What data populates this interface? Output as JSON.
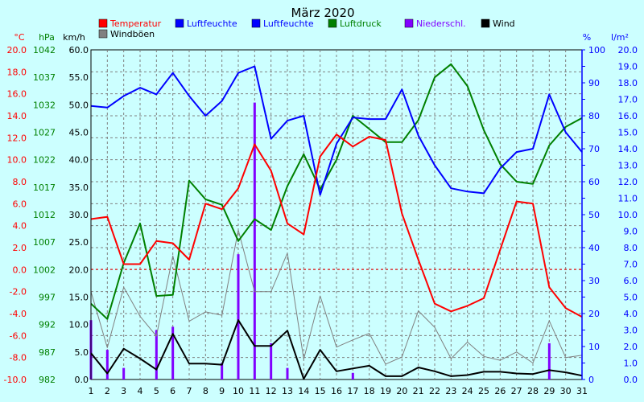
{
  "chart_data": {
    "type": "line",
    "title": "März 2020",
    "x": [
      1,
      2,
      3,
      4,
      5,
      6,
      7,
      8,
      9,
      10,
      11,
      12,
      13,
      14,
      15,
      16,
      17,
      18,
      19,
      20,
      21,
      22,
      23,
      24,
      25,
      26,
      27,
      28,
      29,
      30,
      31
    ],
    "axes": {
      "temp": {
        "label": "°C",
        "ticks": [
          "20.0",
          "18.0",
          "16.0",
          "14.0",
          "12.0",
          "10.0",
          "8.0",
          "6.0",
          "4.0",
          "2.0",
          "0.0",
          "-2.0",
          "-4.0",
          "-6.0",
          "-8.0",
          "-10.0"
        ],
        "ylim": [
          -10,
          20
        ],
        "color": "#FF0000"
      },
      "press": {
        "label": "hPa",
        "ticks": [
          "1042",
          "1037",
          "1032",
          "1027",
          "1022",
          "1017",
          "1012",
          "1007",
          "1002",
          "997",
          "992",
          "987",
          "982"
        ],
        "ylim": [
          982,
          1042
        ],
        "color": "#008000"
      },
      "wind": {
        "label": "km/h",
        "ticks": [
          "60.0",
          "55.0",
          "50.0",
          "45.0",
          "40.0",
          "35.0",
          "30.0",
          "25.0",
          "20.0",
          "15.0",
          "10.0",
          "5.0",
          "0.0"
        ],
        "ylim": [
          0,
          60
        ],
        "color": "#000000"
      },
      "humid": {
        "label": "%",
        "ticks": [
          "100",
          "90",
          "80",
          "70",
          "60",
          "50",
          "40",
          "30",
          "20",
          "10",
          "0"
        ],
        "ylim": [
          0,
          100
        ],
        "color": "#0000FF"
      },
      "precip": {
        "label": "l/m²",
        "ticks": [
          "20.0",
          "19.0",
          "18.0",
          "17.0",
          "16.0",
          "15.0",
          "14.0",
          "13.0",
          "12.0",
          "11.0",
          "10.0",
          "9.0",
          "8.0",
          "7.0",
          "6.0",
          "5.0",
          "4.0",
          "3.0",
          "2.0",
          "1.0",
          "0.0"
        ],
        "ylim": [
          0,
          20
        ],
        "color": "#0000FF"
      }
    },
    "legend": [
      {
        "name": "Temperatur",
        "color": "#FF0000",
        "text_color": "#FF0000"
      },
      {
        "name": "Luftfeuchte",
        "color": "#0000FF",
        "text_color": "#0000FF"
      },
      {
        "name": "Luftfeuchte",
        "color": "#0000FF",
        "text_color": "#0000FF"
      },
      {
        "name": "Luftdruck",
        "color": "#008000",
        "text_color": "#008000"
      },
      {
        "name": "Niederschl.",
        "color": "#8000FF",
        "text_color": "#8000FF"
      },
      {
        "name": "Wind",
        "color": "#000000",
        "text_color": "#000000"
      },
      {
        "name": "Windböen",
        "color": "#808080",
        "text_color": "#000000"
      }
    ],
    "series": [
      {
        "name": "Temperatur",
        "axis": "temp",
        "color": "#FF0000",
        "width": 2,
        "values": [
          4.6,
          4.8,
          0.5,
          0.5,
          2.6,
          2.4,
          0.9,
          6.0,
          5.5,
          7.4,
          11.4,
          9.0,
          4.2,
          3.2,
          10.3,
          12.3,
          11.2,
          12.1,
          11.8,
          5.1,
          0.9,
          -3.1,
          -3.8,
          -3.3,
          -2.6,
          1.8,
          6.2,
          6.0,
          -1.6,
          -3.5,
          -4.3
        ]
      },
      {
        "name": "Luftfeuchte",
        "axis": "humid",
        "color": "#0000FF",
        "width": 2,
        "values": [
          83,
          82.5,
          86,
          88.5,
          86.5,
          93,
          86,
          80,
          84.5,
          93,
          95,
          73,
          78.5,
          80,
          56,
          71.5,
          79.5,
          79,
          79,
          88,
          74,
          65,
          58,
          57,
          56.5,
          64,
          69,
          70,
          86.5,
          75,
          69
        ]
      },
      {
        "name": "Luftdruck",
        "axis": "press",
        "color": "#008000",
        "width": 2,
        "values": [
          995.8,
          993.0,
          1003.2,
          1010.4,
          997.2,
          997.4,
          1018.2,
          1014.8,
          1013.8,
          1007.2,
          1011.2,
          1009.2,
          1017.2,
          1023.0,
          1016.6,
          1022.0,
          1030.0,
          1027.6,
          1025.2,
          1025.2,
          1029.2,
          1037.0,
          1039.4,
          1035.4,
          1027.4,
          1021.2,
          1018.0,
          1017.6,
          1024.6,
          1028.0,
          1029.6
        ]
      },
      {
        "name": "Wind",
        "axis": "wind",
        "color": "#000000",
        "width": 2,
        "values": [
          4.8,
          1.1,
          5.6,
          3.8,
          1.8,
          8.3,
          2.9,
          2.9,
          2.7,
          10.8,
          6.1,
          6.1,
          8.9,
          0.1,
          5.4,
          1.5,
          2.0,
          2.5,
          0.6,
          0.6,
          2.2,
          1.5,
          0.6,
          0.8,
          1.4,
          1.4,
          1.1,
          1.0,
          1.7,
          1.3,
          0.7
        ]
      },
      {
        "name": "Windböen",
        "axis": "wind",
        "color": "#808080",
        "width": 1,
        "values": [
          16.0,
          5.8,
          16.8,
          11.5,
          7.9,
          22.5,
          10.6,
          12.3,
          11.7,
          27.2,
          16.0,
          16.0,
          23.0,
          3.7,
          15.2,
          5.9,
          7.2,
          8.4,
          2.8,
          4.1,
          12.5,
          9.5,
          3.8,
          6.8,
          4.2,
          3.5,
          5.0,
          3.0,
          10.7,
          4.0,
          4.4
        ]
      },
      {
        "name": "Niederschl.",
        "axis": "precip",
        "type": "bar",
        "color": "#8000FF",
        "values": [
          3.6,
          1.8,
          0.7,
          0,
          3.0,
          3.2,
          0,
          0,
          1.0,
          7.6,
          16.8,
          2.2,
          0.7,
          0,
          0,
          0,
          0.4,
          0,
          0,
          0,
          0,
          0,
          0,
          0,
          0,
          0,
          0,
          0,
          2.2,
          0,
          0
        ]
      }
    ],
    "grid": true
  }
}
